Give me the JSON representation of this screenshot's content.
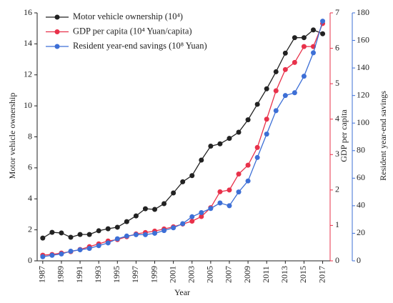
{
  "chart_data": {
    "type": "line",
    "x": [
      1987,
      1988,
      1989,
      1990,
      1991,
      1992,
      1993,
      1994,
      1995,
      1996,
      1997,
      1998,
      1999,
      2000,
      2001,
      2002,
      2003,
      2004,
      2005,
      2006,
      2007,
      2008,
      2009,
      2010,
      2011,
      2012,
      2013,
      2014,
      2015,
      2016,
      2017
    ],
    "series": [
      {
        "name": "Motor vehicle ownership (10⁴)",
        "color": "#222222",
        "axis": "y",
        "values": [
          1.47,
          1.84,
          1.8,
          1.52,
          1.7,
          1.7,
          1.94,
          2.07,
          2.17,
          2.53,
          2.9,
          3.36,
          3.32,
          3.69,
          4.38,
          5.1,
          5.5,
          6.5,
          7.4,
          7.55,
          7.9,
          8.3,
          9.1,
          10.1,
          11.1,
          12.2,
          13.4,
          14.4,
          14.4,
          14.9,
          14.65
        ]
      },
      {
        "name": "GDP per capita (10⁴ Yuan/capita)",
        "color": "#e8314a",
        "axis": "y2",
        "values": [
          0.16,
          0.18,
          0.22,
          0.26,
          0.32,
          0.4,
          0.48,
          0.56,
          0.6,
          0.68,
          0.76,
          0.8,
          0.84,
          0.9,
          0.96,
          1.04,
          1.12,
          1.25,
          1.5,
          1.95,
          2.0,
          2.45,
          2.7,
          3.2,
          4.0,
          4.8,
          5.4,
          5.6,
          6.05,
          6.05,
          6.7
        ]
      },
      {
        "name": "Resident year-end savings (10⁸ Yuan)",
        "color": "#3d6fd6",
        "axis": "y3",
        "values": [
          3,
          4,
          5,
          7,
          8,
          9,
          11,
          13,
          16,
          18,
          19,
          19,
          20,
          22,
          24,
          27,
          32,
          35,
          38,
          42,
          40,
          50,
          58,
          75,
          92,
          109,
          120,
          122,
          134,
          151,
          174
        ]
      }
    ],
    "xlabel": "Year",
    "ylabel": "Motor vehicle ownership",
    "y2label": "GDP per capita",
    "y3label": "Resident year-end savings",
    "xlim": [
      1986.4,
      2017.8
    ],
    "xticks": [
      1987,
      1989,
      1991,
      1993,
      1995,
      1997,
      1999,
      2001,
      2003,
      2005,
      2007,
      2009,
      2011,
      2013,
      2015,
      2017
    ],
    "ylim": [
      0,
      16
    ],
    "yticks": [
      0,
      2,
      4,
      6,
      8,
      10,
      12,
      14,
      16
    ],
    "y2lim": [
      0,
      7
    ],
    "y2ticks": [
      0,
      1,
      2,
      3,
      4,
      5,
      6,
      7
    ],
    "y3lim": [
      0,
      180
    ],
    "y3ticks": [
      0,
      20,
      40,
      60,
      80,
      100,
      120,
      140,
      160,
      180
    ],
    "legend": "upper left"
  }
}
